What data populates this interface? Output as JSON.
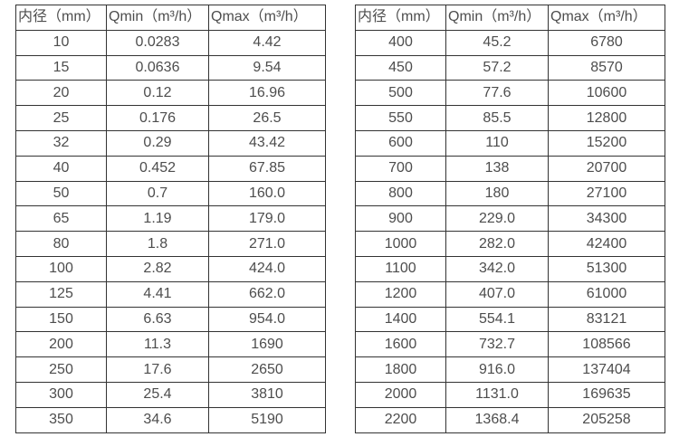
{
  "table_headers": [
    "内径（mm）",
    "Qmin（m³/h）",
    "Qmax（m³/h）"
  ],
  "column_names": [
    "cell-diameter",
    "cell-qmin",
    "cell-qmax"
  ],
  "style": {
    "border_color": "#333333",
    "text_color": "#4d4d4d",
    "background": "#ffffff"
  },
  "tables": [
    {
      "name": "flow-table-dn10-dn350",
      "rows": [
        [
          "10",
          "0.0283",
          "4.42"
        ],
        [
          "15",
          "0.0636",
          "9.54"
        ],
        [
          "20",
          "0.12",
          "16.96"
        ],
        [
          "25",
          "0.176",
          "26.5"
        ],
        [
          "32",
          "0.29",
          "43.42"
        ],
        [
          "40",
          "0.452",
          "67.85"
        ],
        [
          "50",
          "0.7",
          "160.0"
        ],
        [
          "65",
          "1.19",
          "179.0"
        ],
        [
          "80",
          "1.8",
          "271.0"
        ],
        [
          "100",
          "2.82",
          "424.0"
        ],
        [
          "125",
          "4.41",
          "662.0"
        ],
        [
          "150",
          "6.63",
          "954.0"
        ],
        [
          "200",
          "11.3",
          "1690"
        ],
        [
          "250",
          "17.6",
          "2650"
        ],
        [
          "300",
          "25.4",
          "3810"
        ],
        [
          "350",
          "34.6",
          "5190"
        ]
      ]
    },
    {
      "name": "flow-table-dn400-dn2200",
      "rows": [
        [
          "400",
          "45.2",
          "6780"
        ],
        [
          "450",
          "57.2",
          "8570"
        ],
        [
          "500",
          "77.6",
          "10600"
        ],
        [
          "550",
          "85.5",
          "12800"
        ],
        [
          "600",
          "110",
          "15200"
        ],
        [
          "700",
          "138",
          "20700"
        ],
        [
          "800",
          "180",
          "27100"
        ],
        [
          "900",
          "229.0",
          "34300"
        ],
        [
          "1000",
          "282.0",
          "42400"
        ],
        [
          "1100",
          "342.0",
          "51300"
        ],
        [
          "1200",
          "407.0",
          "61000"
        ],
        [
          "1400",
          "554.1",
          "83121"
        ],
        [
          "1600",
          "732.7",
          "108566"
        ],
        [
          "1800",
          "916.0",
          "137404"
        ],
        [
          "2000",
          "1131.0",
          "169635"
        ],
        [
          "2200",
          "1368.4",
          "205258"
        ]
      ]
    }
  ]
}
